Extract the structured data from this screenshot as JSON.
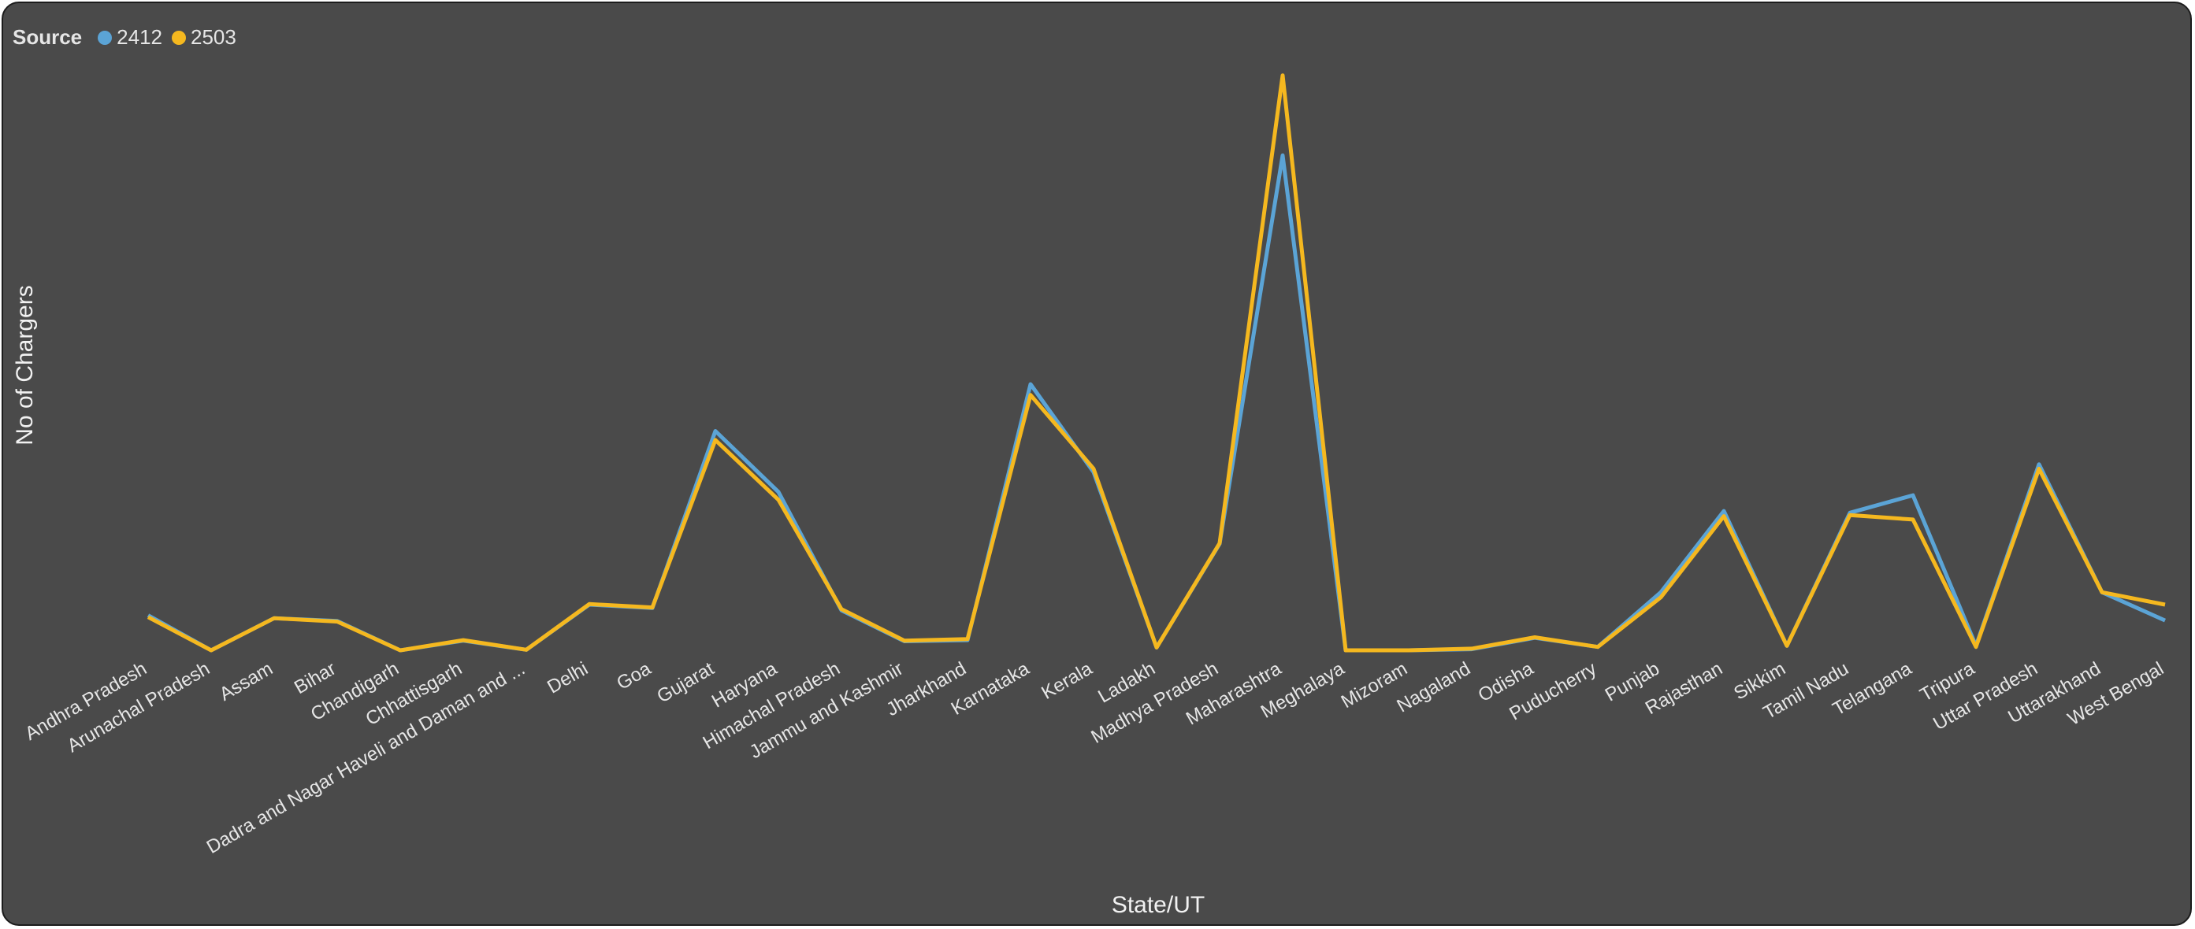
{
  "legend": {
    "title": "Source"
  },
  "colors": {
    "2412": "#5ba4d6",
    "2503": "#f5b81f",
    "background": "#4a4a4a",
    "text": "#e6e6e6"
  },
  "chart_data": {
    "type": "line",
    "title": "",
    "xlabel": "State/UT",
    "ylabel": "No of Chargers",
    "ylim": [
      0,
      1000
    ],
    "y_axis_ticks_visible": false,
    "grid": false,
    "legend_position": "top-left",
    "categories": [
      "Andhra Pradesh",
      "Arunachal Pradesh",
      "Assam",
      "Bihar",
      "Chandigarh",
      "Chhattisgarh",
      "Dadra and Nagar Haveli and Daman and ...",
      "Delhi",
      "Goa",
      "Gujarat",
      "Haryana",
      "Himachal Pradesh",
      "Jammu and Kashmir",
      "Jharkhand",
      "Karnataka",
      "Kerala",
      "Ladakh",
      "Madhya Pradesh",
      "Maharashtra",
      "Meghalaya",
      "Mizoram",
      "Nagaland",
      "Odisha",
      "Puducherry",
      "Punjab",
      "Rajasthan",
      "Sikkim",
      "Tamil Nadu",
      "Telangana",
      "Tripura",
      "Uttar Pradesh",
      "Uttarakhand",
      "West Bengal"
    ],
    "series": [
      {
        "name": "2412",
        "values": [
          62,
          0,
          57,
          52,
          0,
          17,
          1,
          81,
          75,
          389,
          281,
          71,
          16,
          18,
          472,
          316,
          5,
          189,
          878,
          0,
          0,
          2,
          22,
          6,
          103,
          247,
          8,
          244,
          275,
          8,
          330,
          103,
          53
        ]
      },
      {
        "name": "2503",
        "values": [
          59,
          0,
          57,
          51,
          0,
          18,
          1,
          82,
          76,
          373,
          267,
          73,
          17,
          20,
          453,
          322,
          5,
          190,
          1020,
          0,
          0,
          3,
          23,
          6,
          94,
          238,
          8,
          240,
          232,
          6,
          322,
          103,
          81
        ]
      }
    ]
  }
}
